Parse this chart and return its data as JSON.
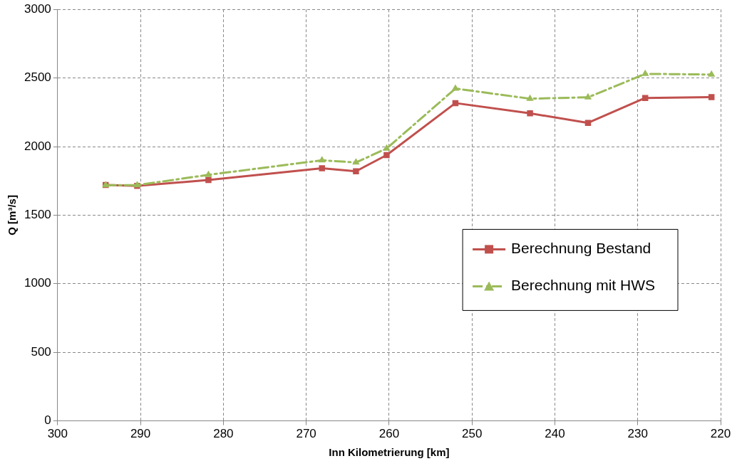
{
  "chart_data": {
    "type": "line",
    "xlabel": "Inn Kilometrierung [km]",
    "ylabel": "Q [m³/s]",
    "xlim": [
      300,
      220
    ],
    "xticks": [
      300,
      290,
      280,
      270,
      260,
      250,
      240,
      230,
      220
    ],
    "ylim": [
      0,
      3000
    ],
    "yticks": [
      0,
      500,
      1000,
      1500,
      2000,
      2500,
      3000
    ],
    "grid": true,
    "legend": "right",
    "x": [
      294.2,
      290.4,
      281.8,
      268.1,
      264.0,
      260.3,
      252.0,
      243.0,
      236.0,
      229.1,
      221.1
    ],
    "series": [
      {
        "name": "Berechnung Bestand",
        "color": "#c0504d",
        "marker": "square",
        "line_style": "solid",
        "values": [
          1720,
          1713,
          1756,
          1842,
          1820,
          1938,
          2317,
          2242,
          2173,
          2354,
          2360
        ]
      },
      {
        "name": "Berechnung mit HWS",
        "color": "#9bbb59",
        "marker": "triangle",
        "line_style": "dashed",
        "values": [
          1719,
          1719,
          1794,
          1900,
          1884,
          1986,
          2423,
          2349,
          2359,
          2530,
          2525
        ]
      }
    ]
  }
}
